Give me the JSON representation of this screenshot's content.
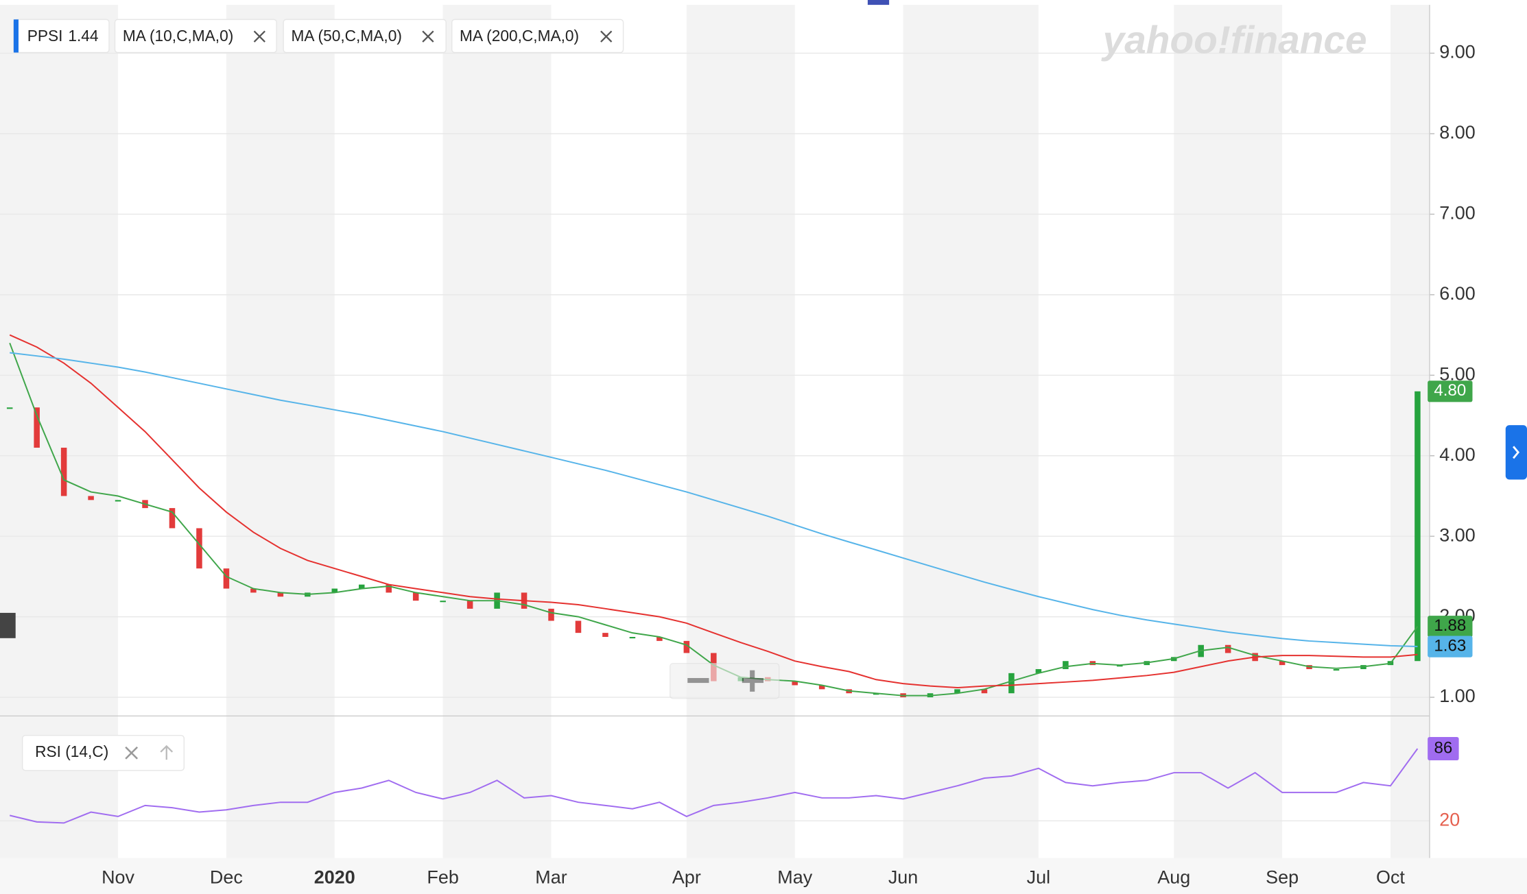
{
  "chart_data": {
    "type": "candlestick",
    "watermark": "yahoo!finance",
    "quote": "1.44",
    "categories": [
      null,
      null,
      null,
      null,
      "Nov",
      null,
      null,
      null,
      "Dec",
      null,
      null,
      null,
      "2020",
      null,
      null,
      null,
      "Feb",
      null,
      null,
      null,
      "Mar",
      null,
      null,
      null,
      null,
      "Apr",
      null,
      null,
      null,
      "May",
      null,
      null,
      null,
      "Jun",
      null,
      null,
      null,
      null,
      "Jul",
      null,
      null,
      null,
      null,
      "Aug",
      null,
      null,
      null,
      "Sep",
      null,
      null,
      null,
      "Oct",
      null
    ],
    "ylim": [
      0.78,
      9.6
    ],
    "yticks": [
      {
        "value": 1,
        "label": "1.00"
      },
      {
        "value": 2,
        "label": "2.00"
      },
      {
        "value": 3,
        "label": "3.00"
      },
      {
        "value": 4,
        "label": "4.00"
      },
      {
        "value": 5,
        "label": "5.00"
      },
      {
        "value": 6,
        "label": "6.00"
      },
      {
        "value": 7,
        "label": "7.00"
      },
      {
        "value": 8,
        "label": "8.00"
      },
      {
        "value": 9,
        "label": "9.00"
      }
    ],
    "grid": true,
    "series": [
      {
        "name": "PPSI",
        "kind": "candle",
        "up_color": "#26a33e",
        "down_color": "#e23b3b",
        "color": "#3fa64a",
        "last_label": "4.80",
        "values": [
          4.6,
          4.1,
          3.5,
          3.45,
          3.45,
          3.35,
          3.1,
          2.6,
          2.35,
          2.3,
          2.25,
          2.3,
          2.35,
          2.4,
          2.3,
          2.2,
          2.2,
          2.1,
          2.3,
          2.1,
          1.95,
          1.8,
          1.75,
          1.75,
          1.7,
          1.55,
          1.2,
          1.25,
          1.2,
          1.15,
          1.1,
          1.05,
          1.05,
          1.0,
          1.05,
          1.1,
          1.05,
          1.3,
          1.35,
          1.45,
          1.4,
          1.4,
          1.45,
          1.5,
          1.65,
          1.55,
          1.45,
          1.4,
          1.35,
          1.35,
          1.4,
          1.45,
          4.8
        ]
      },
      {
        "name": "MA (10,C,MA,0)",
        "kind": "line",
        "color": "#3fa64a",
        "last_label": "1.88",
        "values": [
          5.4,
          4.5,
          3.7,
          3.55,
          3.5,
          3.4,
          3.3,
          2.9,
          2.5,
          2.35,
          2.3,
          2.28,
          2.3,
          2.35,
          2.38,
          2.3,
          2.25,
          2.2,
          2.2,
          2.15,
          2.05,
          2.0,
          1.9,
          1.8,
          1.75,
          1.65,
          1.4,
          1.25,
          1.22,
          1.2,
          1.15,
          1.08,
          1.05,
          1.02,
          1.02,
          1.05,
          1.1,
          1.2,
          1.3,
          1.38,
          1.42,
          1.4,
          1.43,
          1.48,
          1.58,
          1.62,
          1.52,
          1.45,
          1.38,
          1.36,
          1.38,
          1.42,
          1.88
        ]
      },
      {
        "name": "MA (50,C,MA,0)",
        "kind": "line",
        "color": "#e5312f",
        "values": [
          5.5,
          5.35,
          5.15,
          4.9,
          4.6,
          4.3,
          3.95,
          3.6,
          3.3,
          3.05,
          2.85,
          2.7,
          2.6,
          2.5,
          2.4,
          2.35,
          2.3,
          2.25,
          2.22,
          2.2,
          2.18,
          2.15,
          2.1,
          2.05,
          2.0,
          1.92,
          1.8,
          1.68,
          1.57,
          1.45,
          1.38,
          1.32,
          1.22,
          1.17,
          1.14,
          1.12,
          1.14,
          1.15,
          1.17,
          1.19,
          1.21,
          1.24,
          1.27,
          1.31,
          1.38,
          1.45,
          1.5,
          1.52,
          1.52,
          1.51,
          1.5,
          1.5,
          1.53
        ]
      },
      {
        "name": "MA (200,C,MA,0)",
        "kind": "line",
        "color": "#56b4e9",
        "last_label": "1.63",
        "values": [
          5.28,
          5.24,
          5.2,
          5.15,
          5.1,
          5.04,
          4.97,
          4.9,
          4.83,
          4.76,
          4.69,
          4.63,
          4.57,
          4.51,
          4.44,
          4.37,
          4.3,
          4.22,
          4.14,
          4.06,
          3.98,
          3.9,
          3.82,
          3.73,
          3.64,
          3.55,
          3.45,
          3.35,
          3.25,
          3.14,
          3.03,
          2.93,
          2.83,
          2.73,
          2.63,
          2.53,
          2.43,
          2.34,
          2.25,
          2.17,
          2.09,
          2.02,
          1.96,
          1.91,
          1.86,
          1.81,
          1.77,
          1.73,
          1.7,
          1.68,
          1.66,
          1.64,
          1.63
        ]
      }
    ],
    "rsi": {
      "name": "RSI (14,C)",
      "color": "#a06cf0",
      "ylim": [
        -14,
        115
      ],
      "yticks": [
        20
      ],
      "tick_color": "#e5604f",
      "values": [
        25,
        19,
        18,
        28,
        24,
        34,
        32,
        28,
        30,
        34,
        37,
        37,
        46,
        50,
        57,
        46,
        40,
        46,
        57,
        41,
        43,
        37,
        34,
        31,
        37,
        24,
        34,
        37,
        41,
        46,
        41,
        41,
        43,
        40,
        46,
        52,
        59,
        61,
        68,
        55,
        52,
        55,
        57,
        64,
        64,
        50,
        64,
        46,
        46,
        46,
        55,
        52,
        86
      ]
    }
  }
}
